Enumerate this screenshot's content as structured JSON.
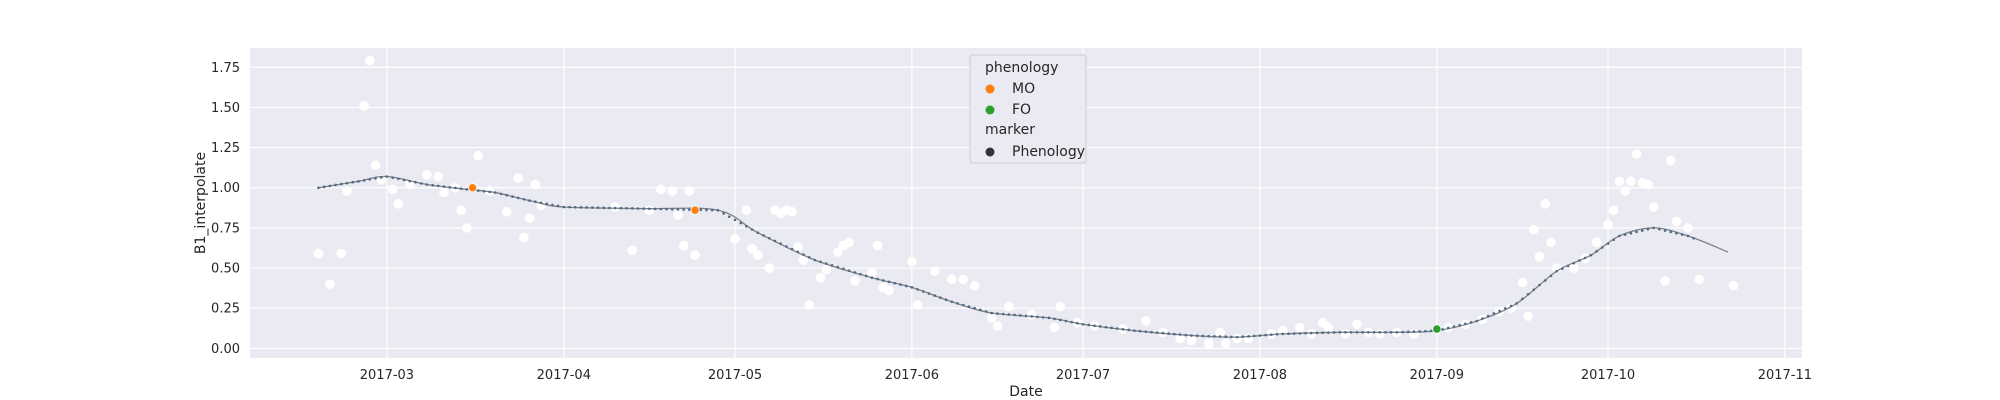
{
  "chart_data": {
    "type": "scatter",
    "xlabel": "Date",
    "ylabel": "B1_interpolate",
    "xlim": [
      "2017-02-05",
      "2017-11-04"
    ],
    "ylim": [
      -0.06,
      1.87
    ],
    "grid": true,
    "legend_position": "top-center",
    "x_ticks": [
      "2017-03-01",
      "2017-04-01",
      "2017-05-01",
      "2017-06-01",
      "2017-07-01",
      "2017-08-01",
      "2017-09-01",
      "2017-10-01",
      "2017-11-01"
    ],
    "x_tick_labels": [
      "2017-03",
      "2017-04",
      "2017-05",
      "2017-06",
      "2017-07",
      "2017-08",
      "2017-09",
      "2017-10",
      "2017-11"
    ],
    "y_ticks": [
      0.0,
      0.25,
      0.5,
      0.75,
      1.0,
      1.25,
      1.5,
      1.75
    ],
    "y_tick_labels": [
      "0.00",
      "0.25",
      "0.50",
      "0.75",
      "1.00",
      "1.25",
      "1.50",
      "1.75"
    ],
    "colors": {
      "background": "#eaeaf2",
      "grid": "#ffffff",
      "observations": "#ffffff",
      "line": "#7f7f7f",
      "line_markers": "#4c6a8a",
      "MO": "#ff7f0e",
      "FO": "#2ca02c",
      "marker_legend": "#333333"
    },
    "legend": {
      "hue_title": "phenology",
      "hue_entries": [
        {
          "label": "MO",
          "color": "#ff7f0e"
        },
        {
          "label": "FO",
          "color": "#2ca02c"
        }
      ],
      "marker_title": "marker",
      "marker_entries": [
        {
          "label": "Phenology",
          "color": "#333333"
        }
      ]
    },
    "smoothed_series": {
      "x": [
        "2017-02-17",
        "2017-02-24",
        "2017-03-01",
        "2017-03-08",
        "2017-03-15",
        "2017-03-20",
        "2017-03-26",
        "2017-04-01",
        "2017-04-15",
        "2017-04-28",
        "2017-05-05",
        "2017-05-15",
        "2017-05-25",
        "2017-06-01",
        "2017-06-08",
        "2017-06-15",
        "2017-06-25",
        "2017-07-01",
        "2017-07-10",
        "2017-07-20",
        "2017-07-28",
        "2017-08-05",
        "2017-08-15",
        "2017-08-25",
        "2017-09-01",
        "2017-09-08",
        "2017-09-15",
        "2017-09-22",
        "2017-09-28",
        "2017-10-03",
        "2017-10-09",
        "2017-10-15",
        "2017-10-22"
      ],
      "y": [
        1.0,
        1.04,
        1.07,
        1.02,
        0.99,
        0.97,
        0.92,
        0.88,
        0.87,
        0.86,
        0.72,
        0.55,
        0.44,
        0.38,
        0.29,
        0.22,
        0.19,
        0.15,
        0.11,
        0.08,
        0.07,
        0.09,
        0.1,
        0.1,
        0.11,
        0.17,
        0.28,
        0.48,
        0.58,
        0.7,
        0.75,
        0.7,
        0.6
      ]
    },
    "phenology_points": [
      {
        "label": "MO",
        "x": "2017-03-16",
        "y": 1.0
      },
      {
        "label": "MO",
        "x": "2017-04-24",
        "y": 0.86
      },
      {
        "label": "FO",
        "x": "2017-09-01",
        "y": 0.12
      }
    ],
    "observations": [
      [
        "2017-02-17",
        0.59
      ],
      [
        "2017-02-19",
        0.4
      ],
      [
        "2017-02-21",
        0.59
      ],
      [
        "2017-02-22",
        0.98
      ],
      [
        "2017-02-25",
        1.51
      ],
      [
        "2017-02-26",
        1.79
      ],
      [
        "2017-02-27",
        1.14
      ],
      [
        "2017-02-28",
        1.05
      ],
      [
        "2017-03-02",
        0.99
      ],
      [
        "2017-03-03",
        0.9
      ],
      [
        "2017-03-05",
        1.02
      ],
      [
        "2017-03-08",
        1.08
      ],
      [
        "2017-03-10",
        1.07
      ],
      [
        "2017-03-11",
        0.97
      ],
      [
        "2017-03-13",
        1.0
      ],
      [
        "2017-03-14",
        0.86
      ],
      [
        "2017-03-15",
        0.75
      ],
      [
        "2017-03-17",
        1.2
      ],
      [
        "2017-03-19",
        0.98
      ],
      [
        "2017-03-22",
        0.85
      ],
      [
        "2017-03-24",
        1.06
      ],
      [
        "2017-03-25",
        0.69
      ],
      [
        "2017-03-26",
        0.81
      ],
      [
        "2017-03-27",
        1.02
      ],
      [
        "2017-03-28",
        0.89
      ],
      [
        "2017-04-10",
        0.88
      ],
      [
        "2017-04-13",
        0.61
      ],
      [
        "2017-04-16",
        0.86
      ],
      [
        "2017-04-18",
        0.99
      ],
      [
        "2017-04-20",
        0.98
      ],
      [
        "2017-04-21",
        0.83
      ],
      [
        "2017-04-22",
        0.64
      ],
      [
        "2017-04-23",
        0.98
      ],
      [
        "2017-04-24",
        0.58
      ],
      [
        "2017-05-01",
        0.68
      ],
      [
        "2017-05-03",
        0.86
      ],
      [
        "2017-05-04",
        0.62
      ],
      [
        "2017-05-05",
        0.58
      ],
      [
        "2017-05-07",
        0.5
      ],
      [
        "2017-05-08",
        0.86
      ],
      [
        "2017-05-09",
        0.84
      ],
      [
        "2017-05-10",
        0.86
      ],
      [
        "2017-05-11",
        0.85
      ],
      [
        "2017-05-12",
        0.63
      ],
      [
        "2017-05-13",
        0.55
      ],
      [
        "2017-05-14",
        0.27
      ],
      [
        "2017-05-16",
        0.44
      ],
      [
        "2017-05-17",
        0.49
      ],
      [
        "2017-05-19",
        0.6
      ],
      [
        "2017-05-20",
        0.64
      ],
      [
        "2017-05-21",
        0.66
      ],
      [
        "2017-05-22",
        0.42
      ],
      [
        "2017-05-25",
        0.47
      ],
      [
        "2017-05-26",
        0.64
      ],
      [
        "2017-05-27",
        0.38
      ],
      [
        "2017-05-28",
        0.36
      ],
      [
        "2017-06-01",
        0.54
      ],
      [
        "2017-06-02",
        0.27
      ],
      [
        "2017-06-05",
        0.48
      ],
      [
        "2017-06-08",
        0.43
      ],
      [
        "2017-06-10",
        0.43
      ],
      [
        "2017-06-12",
        0.39
      ],
      [
        "2017-06-15",
        0.19
      ],
      [
        "2017-06-16",
        0.14
      ],
      [
        "2017-06-18",
        0.26
      ],
      [
        "2017-06-22",
        0.21
      ],
      [
        "2017-06-26",
        0.13
      ],
      [
        "2017-06-27",
        0.26
      ],
      [
        "2017-06-30",
        0.16
      ],
      [
        "2017-07-03",
        0.14
      ],
      [
        "2017-07-08",
        0.12
      ],
      [
        "2017-07-12",
        0.17
      ],
      [
        "2017-07-15",
        0.1
      ],
      [
        "2017-07-18",
        0.06
      ],
      [
        "2017-07-20",
        0.05
      ],
      [
        "2017-07-23",
        0.03
      ],
      [
        "2017-07-25",
        0.1
      ],
      [
        "2017-07-26",
        0.03
      ],
      [
        "2017-07-28",
        0.06
      ],
      [
        "2017-07-30",
        0.06
      ],
      [
        "2017-08-03",
        0.09
      ],
      [
        "2017-08-05",
        0.11
      ],
      [
        "2017-08-08",
        0.13
      ],
      [
        "2017-08-10",
        0.09
      ],
      [
        "2017-08-12",
        0.16
      ],
      [
        "2017-08-13",
        0.13
      ],
      [
        "2017-08-16",
        0.09
      ],
      [
        "2017-08-18",
        0.15
      ],
      [
        "2017-08-20",
        0.1
      ],
      [
        "2017-08-22",
        0.09
      ],
      [
        "2017-08-25",
        0.1
      ],
      [
        "2017-08-28",
        0.09
      ],
      [
        "2017-09-03",
        0.13
      ],
      [
        "2017-09-06",
        0.15
      ],
      [
        "2017-09-09",
        0.18
      ],
      [
        "2017-09-12",
        0.23
      ],
      [
        "2017-09-14",
        0.25
      ],
      [
        "2017-09-16",
        0.41
      ],
      [
        "2017-09-17",
        0.2
      ],
      [
        "2017-09-18",
        0.74
      ],
      [
        "2017-09-19",
        0.57
      ],
      [
        "2017-09-20",
        0.9
      ],
      [
        "2017-09-21",
        0.66
      ],
      [
        "2017-09-22",
        0.5
      ],
      [
        "2017-09-25",
        0.5
      ],
      [
        "2017-09-27",
        0.56
      ],
      [
        "2017-09-29",
        0.66
      ],
      [
        "2017-10-01",
        0.77
      ],
      [
        "2017-10-02",
        0.86
      ],
      [
        "2017-10-03",
        1.04
      ],
      [
        "2017-10-04",
        0.98
      ],
      [
        "2017-10-05",
        1.04
      ],
      [
        "2017-10-06",
        1.21
      ],
      [
        "2017-10-07",
        1.03
      ],
      [
        "2017-10-08",
        1.02
      ],
      [
        "2017-10-09",
        0.88
      ],
      [
        "2017-10-11",
        0.42
      ],
      [
        "2017-10-12",
        1.17
      ],
      [
        "2017-10-13",
        0.79
      ],
      [
        "2017-10-15",
        0.75
      ],
      [
        "2017-10-17",
        0.43
      ],
      [
        "2017-10-23",
        0.39
      ]
    ]
  }
}
